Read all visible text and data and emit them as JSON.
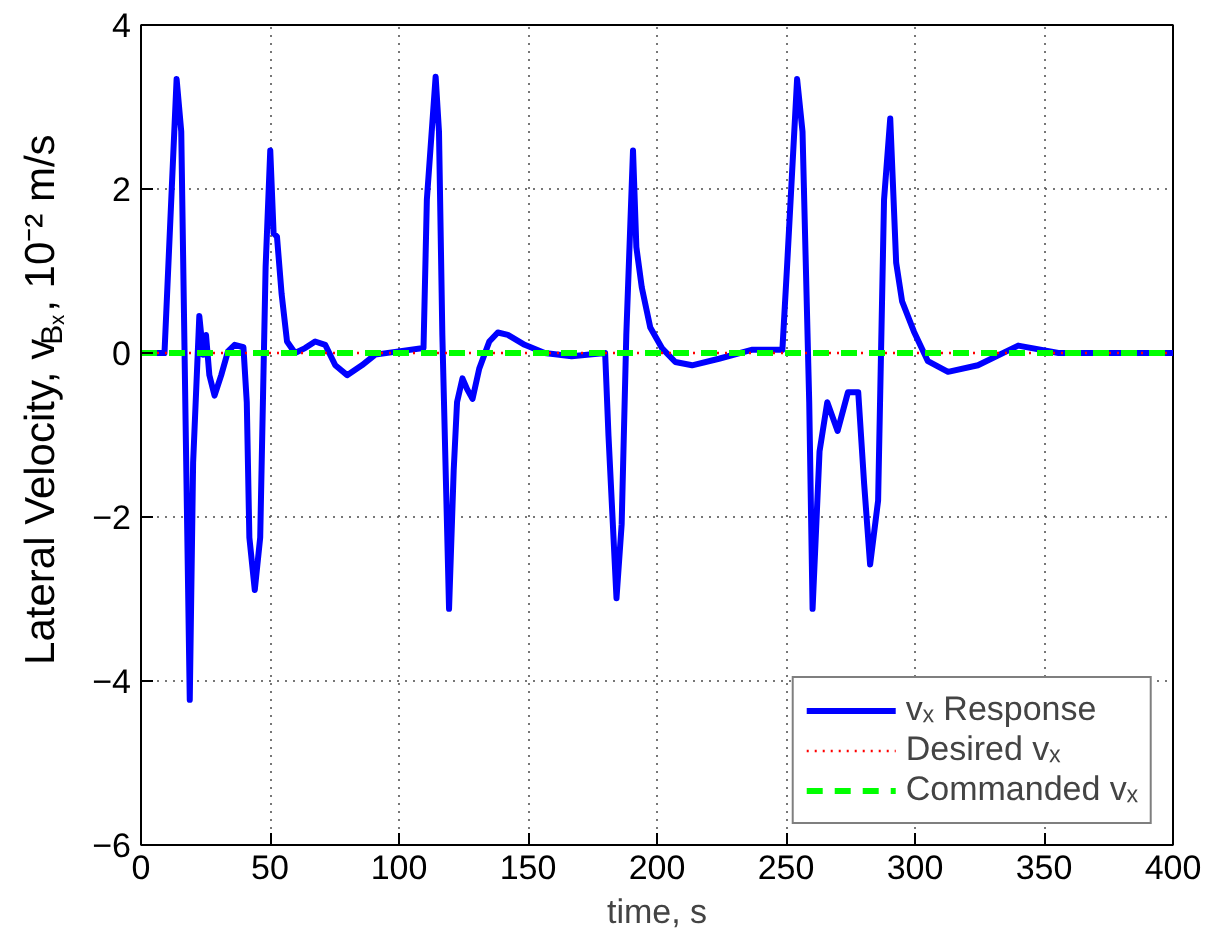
{
  "chart_data": {
    "type": "line",
    "xlabel": "time, s",
    "ylabel": "Lateral Velocity, v$_{Bₓ}$, 10⁻² m/s",
    "xlim": [
      0,
      400
    ],
    "ylim": [
      -6,
      4
    ],
    "xticks": [
      0,
      50,
      100,
      150,
      200,
      250,
      300,
      350,
      400
    ],
    "yticks": [
      -6,
      -4,
      -2,
      0,
      2,
      4
    ],
    "grid": true,
    "legend": "bottom right",
    "series": [
      {
        "name": "vₓ Response",
        "color": "#0000ff",
        "line_style": "solid",
        "x": [
          0,
          9.1,
          13.8,
          15.6,
          18.9,
          20.2,
          22.6,
          24.1,
          25.2,
          26.5,
          28.5,
          31.1,
          33.7,
          36.3,
          39.7,
          41.0,
          42.0,
          44.1,
          46.2,
          48.3,
          50.1,
          51.4,
          52.7,
          54.5,
          56.6,
          59.7,
          63.6,
          67.5,
          71.4,
          75.3,
          79.9,
          85.6,
          90.8,
          99.9,
          109.5,
          110.8,
          114.2,
          115.5,
          116.8,
          119.4,
          121.2,
          122.5,
          124.6,
          126.4,
          128.5,
          131.1,
          135.0,
          138.3,
          142.2,
          148.7,
          156.5,
          166.9,
          179.9,
          181.2,
          184.3,
          186.3,
          188.1,
          190.7,
          192.0,
          194.1,
          197.4,
          201.9,
          207.1,
          213.6,
          224.0,
          237.0,
          248.6,
          250.4,
          254.3,
          256.4,
          259.0,
          260.3,
          263,
          266,
          270,
          274,
          278,
          280.3,
          282.6,
          285.7,
          288,
          290.4,
          292.7,
          295,
          299.6,
          305,
          312.8,
          324.4,
          340,
          355.6,
          400
        ],
        "values": [
          0,
          0,
          3.34,
          2.7,
          -4.23,
          -1.34,
          0.45,
          -0.02,
          0.22,
          -0.27,
          -0.52,
          -0.27,
          0.02,
          0.1,
          0.07,
          -0.6,
          -2.25,
          -2.89,
          -2.25,
          1.05,
          2.47,
          1.46,
          1.42,
          0.72,
          0.14,
          0,
          0.06,
          0.14,
          0.1,
          -0.15,
          -0.27,
          -0.15,
          -0.02,
          0.02,
          0.06,
          1.87,
          3.37,
          2.7,
          0.22,
          -3.12,
          -1.43,
          -0.6,
          -0.31,
          -0.44,
          -0.56,
          -0.19,
          0.14,
          0.25,
          0.22,
          0.1,
          0,
          -0.04,
          0,
          -1.01,
          -2.99,
          -2.09,
          0.22,
          2.47,
          1.29,
          0.8,
          0.31,
          0.06,
          -0.11,
          -0.15,
          -0.07,
          0.04,
          0.04,
          1.05,
          3.34,
          2.7,
          -0.6,
          -3.12,
          -1.2,
          -0.6,
          -0.95,
          -0.48,
          -0.48,
          -1.6,
          -2.58,
          -1.8,
          1.87,
          2.86,
          1.1,
          0.63,
          0.26,
          -0.1,
          -0.23,
          -0.15,
          0.09,
          0,
          0
        ]
      },
      {
        "name": "Desired vₓ",
        "color": "#ff0000",
        "line_style": "dotted",
        "x": [
          0,
          400
        ],
        "values": [
          0,
          0
        ]
      },
      {
        "name": "Commanded vₓ",
        "color": "#00ff00",
        "line_style": "dashed",
        "x": [
          0,
          400
        ],
        "values": [
          0,
          0
        ]
      }
    ]
  }
}
